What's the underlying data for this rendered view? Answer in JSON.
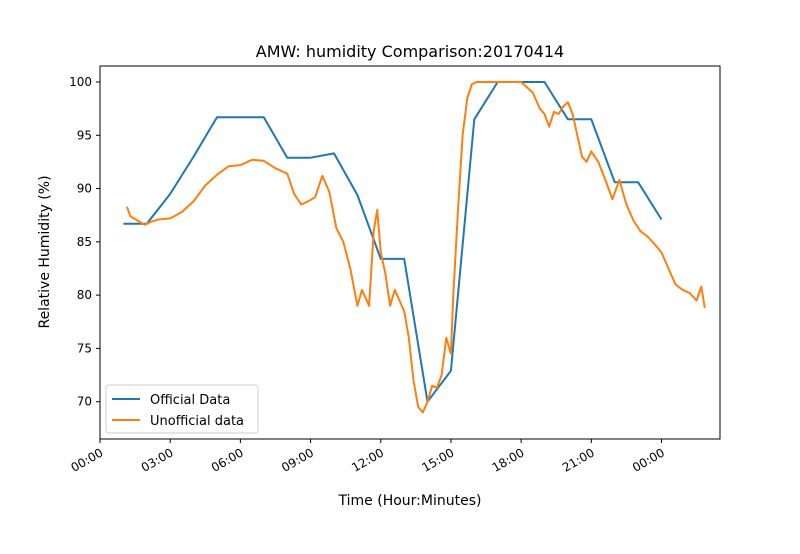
{
  "chart_data": {
    "type": "line",
    "title": "AMW: humidity Comparison:20170414",
    "xlabel": "Time (Hour:Minutes)",
    "ylabel": "Relative Humidity (%)",
    "xlim": [
      0,
      26.5
    ],
    "ylim": [
      66.5,
      101.5
    ],
    "x_ticks": [
      {
        "value": 0,
        "label": "00:00"
      },
      {
        "value": 3,
        "label": "03:00"
      },
      {
        "value": 6,
        "label": "06:00"
      },
      {
        "value": 9,
        "label": "09:00"
      },
      {
        "value": 12,
        "label": "12:00"
      },
      {
        "value": 15,
        "label": "15:00"
      },
      {
        "value": 18,
        "label": "18:00"
      },
      {
        "value": 21,
        "label": "21:00"
      },
      {
        "value": 24,
        "label": "00:00"
      }
    ],
    "y_ticks": [
      70,
      75,
      80,
      85,
      90,
      95,
      100
    ],
    "grid": false,
    "legend_position": "lower-left",
    "series": [
      {
        "name": "Official Data",
        "color": "#1f77b4",
        "x": [
          1.0,
          2.0,
          3.0,
          4.0,
          5.0,
          6.0,
          7.0,
          8.0,
          9.0,
          10.0,
          11.0,
          12.0,
          13.0,
          14.0,
          15.0,
          16.0,
          17.0,
          18.0,
          19.0,
          20.0,
          21.0,
          22.0,
          23.0,
          24.0
        ],
        "y": [
          86.7,
          86.7,
          89.5,
          93.0,
          96.7,
          96.7,
          96.7,
          92.9,
          92.9,
          93.3,
          89.4,
          83.4,
          83.4,
          70.0,
          72.9,
          96.5,
          100.0,
          100.0,
          100.0,
          96.5,
          96.5,
          90.6,
          90.6,
          87.1
        ]
      },
      {
        "name": "Unofficial data",
        "color": "#ff7f0e",
        "x": [
          1.15,
          1.3,
          1.6,
          1.9,
          2.2,
          2.5,
          3.0,
          3.5,
          4.0,
          4.5,
          5.0,
          5.5,
          6.0,
          6.5,
          7.0,
          7.5,
          8.0,
          8.3,
          8.6,
          8.9,
          9.2,
          9.5,
          9.8,
          10.1,
          10.4,
          10.7,
          11.0,
          11.2,
          11.5,
          11.7,
          11.85,
          12.0,
          12.2,
          12.4,
          12.6,
          12.8,
          13.0,
          13.2,
          13.4,
          13.6,
          13.8,
          14.0,
          14.2,
          14.4,
          14.6,
          14.8,
          15.0,
          15.1,
          15.3,
          15.5,
          15.7,
          15.9,
          16.1,
          16.3,
          16.6,
          17.0,
          17.5,
          18.0,
          18.5,
          18.8,
          19.0,
          19.2,
          19.4,
          19.6,
          19.8,
          20.0,
          20.2,
          20.4,
          20.6,
          20.8,
          21.0,
          21.3,
          21.6,
          21.9,
          22.2,
          22.5,
          22.8,
          23.1,
          23.4,
          23.7,
          24.0,
          24.3,
          24.6,
          24.9,
          25.2,
          25.5,
          25.7,
          25.85
        ],
        "y": [
          88.3,
          87.4,
          87.0,
          86.6,
          86.9,
          87.1,
          87.2,
          87.8,
          88.8,
          90.3,
          91.3,
          92.1,
          92.2,
          92.7,
          92.6,
          91.9,
          91.4,
          89.5,
          88.5,
          88.8,
          89.2,
          91.2,
          89.7,
          86.3,
          85.0,
          82.5,
          79.0,
          80.5,
          79.0,
          86.0,
          88.0,
          84.0,
          82.0,
          79.0,
          80.5,
          79.5,
          78.5,
          76.0,
          72.0,
          69.5,
          69.0,
          70.0,
          71.5,
          71.3,
          72.5,
          76.0,
          74.5,
          80.0,
          88.0,
          95.0,
          98.5,
          99.8,
          100.0,
          100.0,
          100.0,
          100.0,
          100.0,
          100.0,
          99.0,
          97.5,
          97.0,
          95.8,
          97.2,
          97.0,
          97.7,
          98.1,
          97.0,
          95.0,
          93.0,
          92.5,
          93.5,
          92.5,
          90.8,
          89.0,
          90.8,
          88.5,
          87.0,
          86.0,
          85.5,
          84.8,
          84.0,
          82.5,
          81.0,
          80.5,
          80.2,
          79.5,
          80.8,
          78.8
        ]
      }
    ]
  }
}
